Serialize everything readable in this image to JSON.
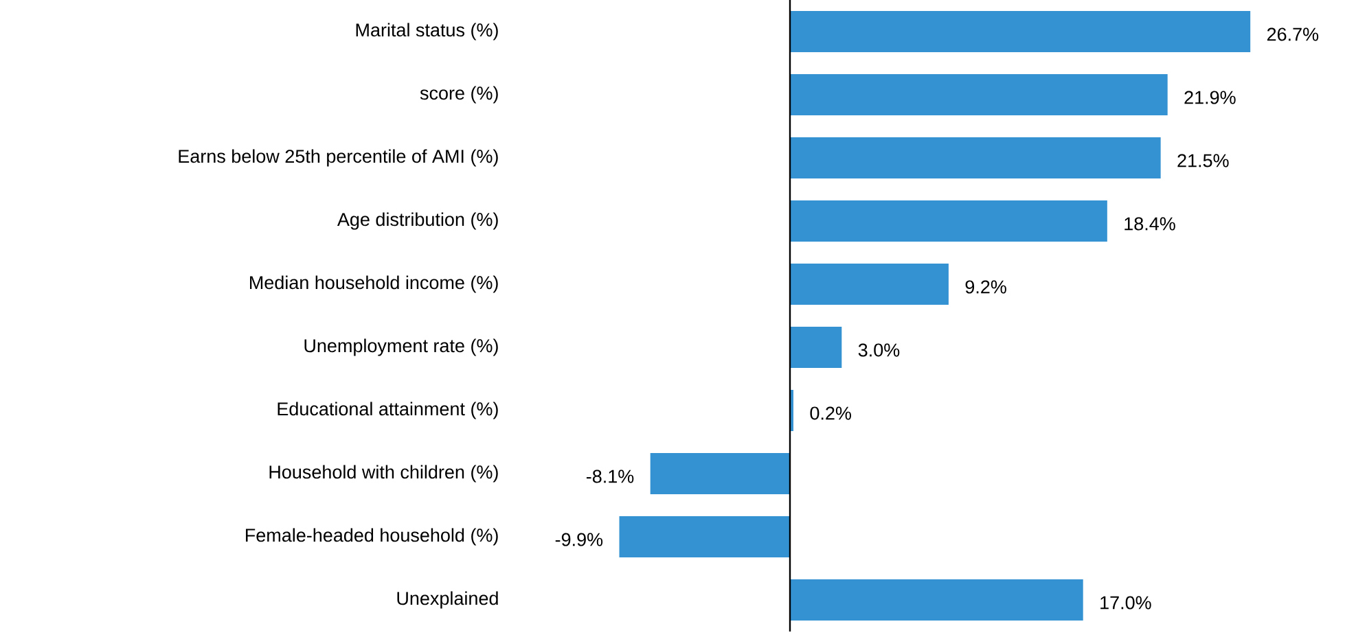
{
  "chart_data": {
    "type": "bar",
    "orientation": "horizontal",
    "categories": [
      "Marital status (%)",
      "score (%)",
      "Earns below 25th percentile of AMI (%)",
      "Age distribution (%)",
      "Median household income (%)",
      "Unemployment rate (%)",
      "Educational attainment (%)",
      "Household with children (%)",
      "Female-headed household (%)",
      "Unexplained"
    ],
    "values": [
      26.7,
      21.9,
      21.5,
      18.4,
      9.2,
      3.0,
      0.2,
      -8.1,
      -9.9,
      17.0
    ],
    "value_labels": [
      "26.7%",
      "21.9%",
      "21.5%",
      "18.4%",
      "9.2%",
      "3.0%",
      "0.2%",
      "-8.1%",
      "-9.9%",
      "17.0%"
    ],
    "color": "#3592d2"
  }
}
